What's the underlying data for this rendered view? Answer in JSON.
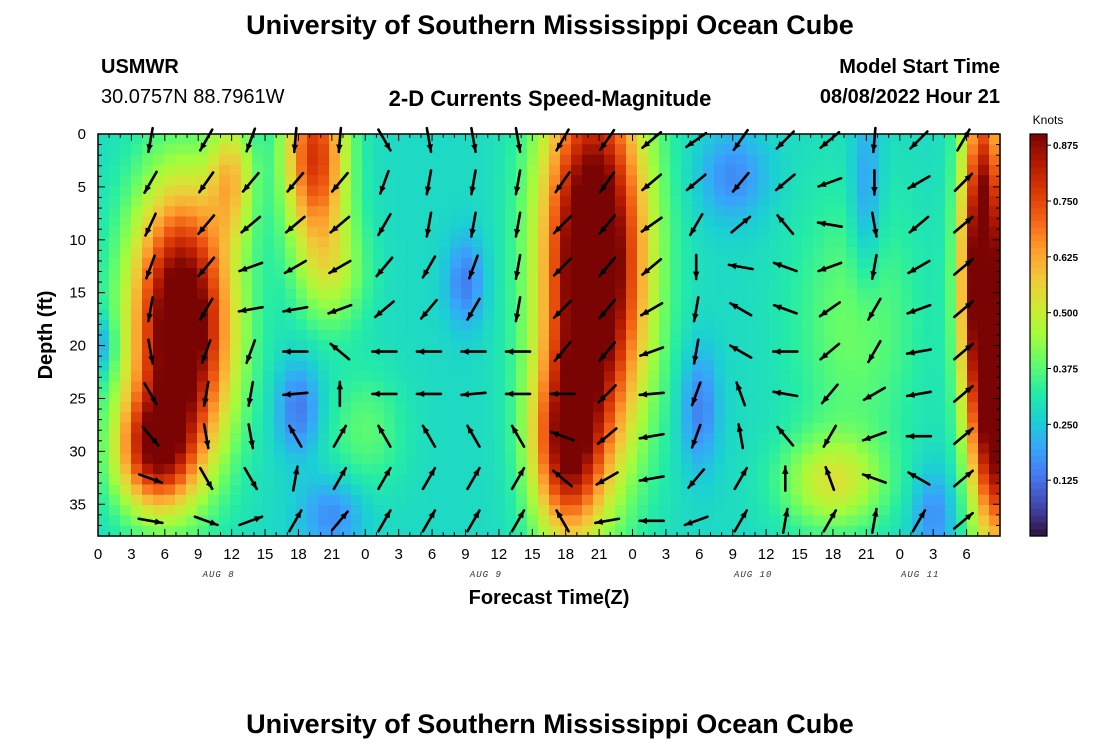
{
  "title": "University of Southern Mississippi Ocean Cube",
  "title_repeat": "University of Southern Mississippi Ocean Cube",
  "station": {
    "name": "USMWR",
    "coords": "30.0757N  88.7961W"
  },
  "model": {
    "label": "Model Start Time",
    "time": "08/08/2022 Hour 21"
  },
  "colors": {
    "scale": [
      "#30123b",
      "#4145ab",
      "#4675ed",
      "#39a2fc",
      "#1bcfd4",
      "#24eca6",
      "#61fc6c",
      "#a4fc3b",
      "#d1e834",
      "#f3c63a",
      "#fe9b2d",
      "#f36315",
      "#d93806",
      "#b11901",
      "#7a0403"
    ]
  },
  "chart_data": {
    "type": "heatmap",
    "title": "2-D Currents Speed-Magnitude",
    "xlabel": "Forecast Time(Z)",
    "ylabel": "Depth (ft)",
    "colorbar_label": "Knots",
    "colorbar_ticks": [
      "0.875",
      "0.750",
      "0.625",
      "0.500",
      "0.375",
      "0.250",
      "0.125"
    ],
    "colorbar_range": [
      0.0,
      0.9
    ],
    "xlim": [
      0,
      81
    ],
    "ylim": [
      38,
      0
    ],
    "x_ticks": [
      {
        "v": 0,
        "label": "0"
      },
      {
        "v": 3,
        "label": "3"
      },
      {
        "v": 6,
        "label": "6"
      },
      {
        "v": 9,
        "label": "9"
      },
      {
        "v": 12,
        "label": "12"
      },
      {
        "v": 15,
        "label": "15"
      },
      {
        "v": 18,
        "label": "18"
      },
      {
        "v": 21,
        "label": "21"
      },
      {
        "v": 24,
        "label": "0"
      },
      {
        "v": 27,
        "label": "3"
      },
      {
        "v": 30,
        "label": "6"
      },
      {
        "v": 33,
        "label": "9"
      },
      {
        "v": 36,
        "label": "12"
      },
      {
        "v": 39,
        "label": "15"
      },
      {
        "v": 42,
        "label": "18"
      },
      {
        "v": 45,
        "label": "21"
      },
      {
        "v": 48,
        "label": "0"
      },
      {
        "v": 51,
        "label": "3"
      },
      {
        "v": 54,
        "label": "6"
      },
      {
        "v": 57,
        "label": "9"
      },
      {
        "v": 60,
        "label": "12"
      },
      {
        "v": 63,
        "label": "15"
      },
      {
        "v": 66,
        "label": "18"
      },
      {
        "v": 69,
        "label": "21"
      },
      {
        "v": 72,
        "label": "0"
      },
      {
        "v": 75,
        "label": "3"
      },
      {
        "v": 78,
        "label": "6"
      }
    ],
    "y_ticks": [
      0,
      5,
      10,
      15,
      20,
      25,
      30,
      35
    ],
    "date_labels": [
      {
        "v": 12,
        "label": "AUG 8"
      },
      {
        "v": 36,
        "label": "AUG 9"
      },
      {
        "v": 60,
        "label": "AUG 10"
      },
      {
        "v": 75,
        "label": "AUG 11"
      }
    ],
    "speed_hotspots": [
      {
        "t": 7.5,
        "d": 18,
        "st": 3.2,
        "sd": 9,
        "amp": 0.75
      },
      {
        "t": 5,
        "d": 30,
        "st": 2.5,
        "sd": 4,
        "amp": 0.45
      },
      {
        "t": 19.5,
        "d": 2,
        "st": 2,
        "sd": 6,
        "amp": 0.5
      },
      {
        "t": 12,
        "d": 4,
        "st": 1.4,
        "sd": 4,
        "amp": 0.25
      },
      {
        "t": 21,
        "d": 13,
        "st": 2.2,
        "sd": 4,
        "amp": 0.18
      },
      {
        "t": 44.5,
        "d": 12,
        "st": 3.3,
        "sd": 13,
        "amp": 0.8
      },
      {
        "t": 42,
        "d": 30,
        "st": 2.2,
        "sd": 6,
        "amp": 0.45
      },
      {
        "t": 79.5,
        "d": 14,
        "st": 1.4,
        "sd": 13,
        "amp": 0.8
      },
      {
        "t": 81,
        "d": 30,
        "st": 1.2,
        "sd": 7,
        "amp": 0.4
      },
      {
        "t": 66,
        "d": 33,
        "st": 3.3,
        "sd": 3.2,
        "amp": 0.22
      },
      {
        "t": 68,
        "d": 18,
        "st": 4,
        "sd": 9,
        "amp": 0.12
      },
      {
        "t": 24,
        "d": 28,
        "st": 2.5,
        "sd": 4,
        "amp": 0.1
      }
    ],
    "speed_lows": [
      {
        "t": 0,
        "d": 20,
        "st": 1,
        "sd": 2,
        "amp": 0.14
      },
      {
        "t": 18,
        "d": 26,
        "st": 1.4,
        "sd": 3,
        "amp": 0.15
      },
      {
        "t": 21,
        "d": 36,
        "st": 2,
        "sd": 2.5,
        "amp": 0.12
      },
      {
        "t": 33,
        "d": 14,
        "st": 1.2,
        "sd": 3,
        "amp": 0.14
      },
      {
        "t": 54,
        "d": 26,
        "st": 1.2,
        "sd": 4,
        "amp": 0.14
      },
      {
        "t": 57,
        "d": 4,
        "st": 2.2,
        "sd": 3,
        "amp": 0.12
      },
      {
        "t": 69,
        "d": 6,
        "st": 1,
        "sd": 6,
        "amp": 0.12
      },
      {
        "t": 75,
        "d": 36,
        "st": 1.4,
        "sd": 3,
        "amp": 0.12
      }
    ],
    "speed_base": 0.28,
    "vector_times": [
      0,
      4,
      9,
      13,
      17,
      21,
      25,
      29,
      33,
      37,
      41,
      45,
      49,
      53,
      57,
      61,
      65,
      69,
      73,
      77
    ],
    "vector_depths": [
      0,
      4,
      8,
      12,
      16,
      20,
      24,
      28,
      32,
      36
    ],
    "vector_angles_deg": [
      [
        null,
        100,
        120,
        110,
        95,
        95,
        60,
        80,
        80,
        80,
        120,
        125,
        140,
        145,
        125,
        135,
        140,
        95,
        135,
        300
      ],
      [
        null,
        120,
        125,
        130,
        130,
        130,
        110,
        100,
        100,
        100,
        125,
        125,
        140,
        140,
        130,
        140,
        160,
        90,
        150,
        315
      ],
      [
        null,
        115,
        130,
        140,
        140,
        140,
        120,
        100,
        100,
        100,
        135,
        130,
        145,
        120,
        320,
        230,
        190,
        80,
        140,
        320
      ],
      [
        null,
        110,
        130,
        160,
        150,
        150,
        130,
        120,
        110,
        100,
        135,
        130,
        140,
        90,
        190,
        200,
        160,
        100,
        150,
        320
      ],
      [
        null,
        100,
        120,
        170,
        170,
        160,
        140,
        130,
        120,
        100,
        135,
        130,
        150,
        100,
        210,
        200,
        145,
        120,
        160,
        320
      ],
      [
        null,
        80,
        110,
        110,
        180,
        220,
        180,
        180,
        180,
        180,
        130,
        130,
        160,
        100,
        210,
        180,
        140,
        120,
        170,
        320
      ],
      [
        null,
        60,
        100,
        100,
        175,
        270,
        180,
        180,
        175,
        180,
        180,
        135,
        175,
        110,
        250,
        190,
        130,
        150,
        170,
        320
      ],
      [
        null,
        50,
        80,
        80,
        240,
        300,
        240,
        240,
        240,
        240,
        200,
        140,
        170,
        110,
        260,
        230,
        120,
        160,
        180,
        320
      ],
      [
        null,
        20,
        60,
        60,
        280,
        300,
        300,
        300,
        300,
        300,
        220,
        150,
        170,
        130,
        300,
        270,
        250,
        200,
        210,
        320
      ],
      [
        null,
        10,
        20,
        340,
        300,
        310,
        300,
        300,
        300,
        300,
        240,
        170,
        180,
        160,
        300,
        280,
        300,
        280,
        300,
        320
      ]
    ]
  }
}
